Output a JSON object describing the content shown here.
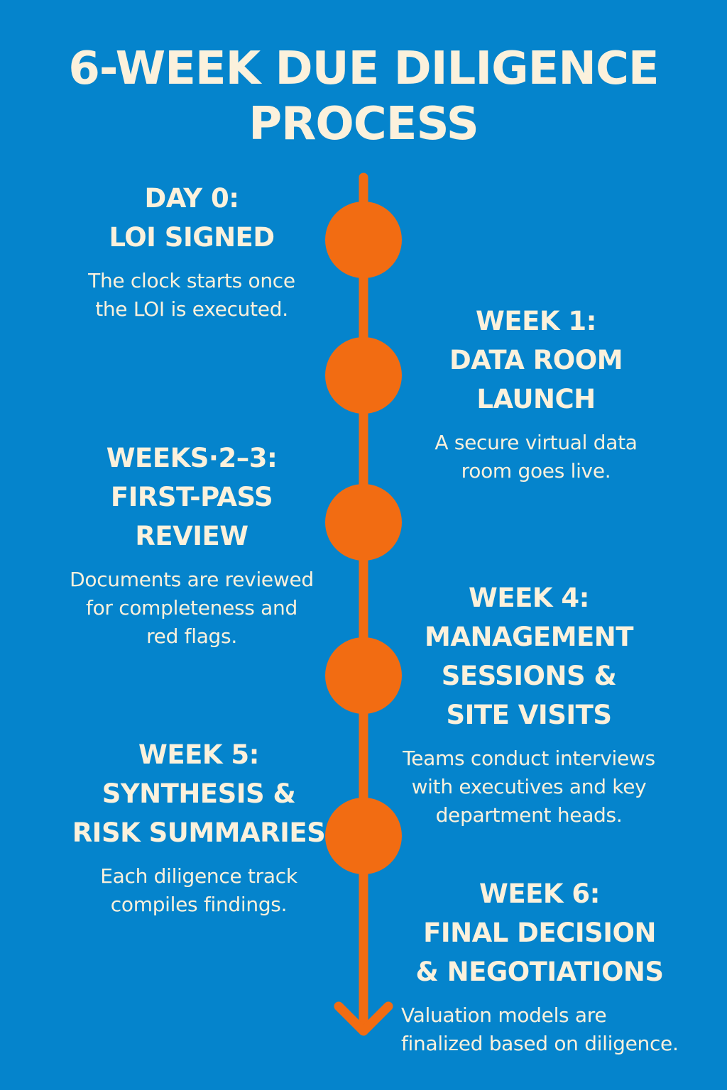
{
  "title": {
    "line1": "6-WEEK DUE DILIGENCE",
    "line2": "PROCESS"
  },
  "colors": {
    "background": "#0584cc",
    "accent": "#f26c12",
    "text": "#fbf1dc"
  },
  "steps": [
    {
      "heading": [
        "DAY 0:",
        "LOI SIGNED"
      ],
      "desc": [
        "The clock starts once",
        "the LOI is executed."
      ]
    },
    {
      "heading": [
        "WEEK 1:",
        "DATA ROOM",
        "LAUNCH"
      ],
      "desc": [
        "A secure virtual data",
        "room goes live."
      ]
    },
    {
      "heading": [
        "WEEKS·2–3:",
        "FIRST-PASS",
        "REVIEW"
      ],
      "desc": [
        "Documents are reviewed",
        "for completeness and",
        "red flags."
      ]
    },
    {
      "heading": [
        "WEEK 4:",
        "MANAGEMENT",
        "SESSIONS &",
        "SITE VISITS"
      ],
      "desc": [
        "Teams conduct interviews",
        "with executives and key",
        "department heads."
      ]
    },
    {
      "heading": [
        "WEEK 5:",
        "SYNTHESIS &",
        "RISK SUMMARIES"
      ],
      "desc": [
        "Each diligence track",
        "compiles findings."
      ]
    },
    {
      "heading": [
        "WEEK 6:",
        "FINAL DECISION",
        "& NEGOTIATIONS"
      ],
      "desc": [
        "Valuation models are",
        "finalized based on diligence."
      ]
    }
  ]
}
